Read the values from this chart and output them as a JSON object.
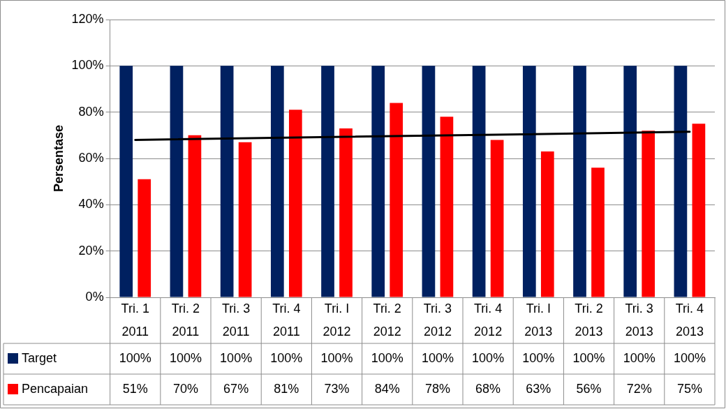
{
  "chart_data": {
    "type": "bar",
    "ylabel": "Persentase",
    "categories": [
      "Tri. 1 2011",
      "Tri. 2 2011",
      "Tri. 3 2011",
      "Tri. 4 2011",
      "Tri. I 2012",
      "Tri. 2 2012",
      "Tri. 3 2012",
      "Tri. 4 2012",
      "Tri. I 2013",
      "Tri. 2 2013",
      "Tri. 3 2013",
      "Tri. 4 2013"
    ],
    "series": [
      {
        "name": "Target",
        "color": "#002060",
        "values": [
          100,
          100,
          100,
          100,
          100,
          100,
          100,
          100,
          100,
          100,
          100,
          100
        ],
        "value_labels": [
          "100%",
          "100%",
          "100%",
          "100%",
          "100%",
          "100%",
          "100%",
          "100%",
          "100%",
          "100%",
          "100%",
          "100%"
        ]
      },
      {
        "name": "Pencapaian",
        "color": "#ff0000",
        "values": [
          51,
          70,
          67,
          81,
          73,
          84,
          78,
          68,
          63,
          56,
          72,
          75
        ],
        "value_labels": [
          "51%",
          "70%",
          "67%",
          "81%",
          "73%",
          "84%",
          "78%",
          "68%",
          "63%",
          "56%",
          "72%",
          "75%"
        ]
      },
      {
        "type": "line",
        "color": "#000000",
        "x": [
          "Tri. 1 2011",
          "Tri. 4 2013"
        ],
        "values": [
          68,
          71.5
        ]
      }
    ],
    "ylim": [
      0,
      120
    ],
    "yticks": [
      {
        "value": 0,
        "label": "0%"
      },
      {
        "value": 20,
        "label": "20%"
      },
      {
        "value": 40,
        "label": "40%"
      },
      {
        "value": 60,
        "label": "60%"
      },
      {
        "value": 80,
        "label": "80%"
      },
      {
        "value": 100,
        "label": "100%"
      },
      {
        "value": 120,
        "label": "120%"
      }
    ],
    "grid": "y",
    "legend": "bottom",
    "marker": "none"
  }
}
